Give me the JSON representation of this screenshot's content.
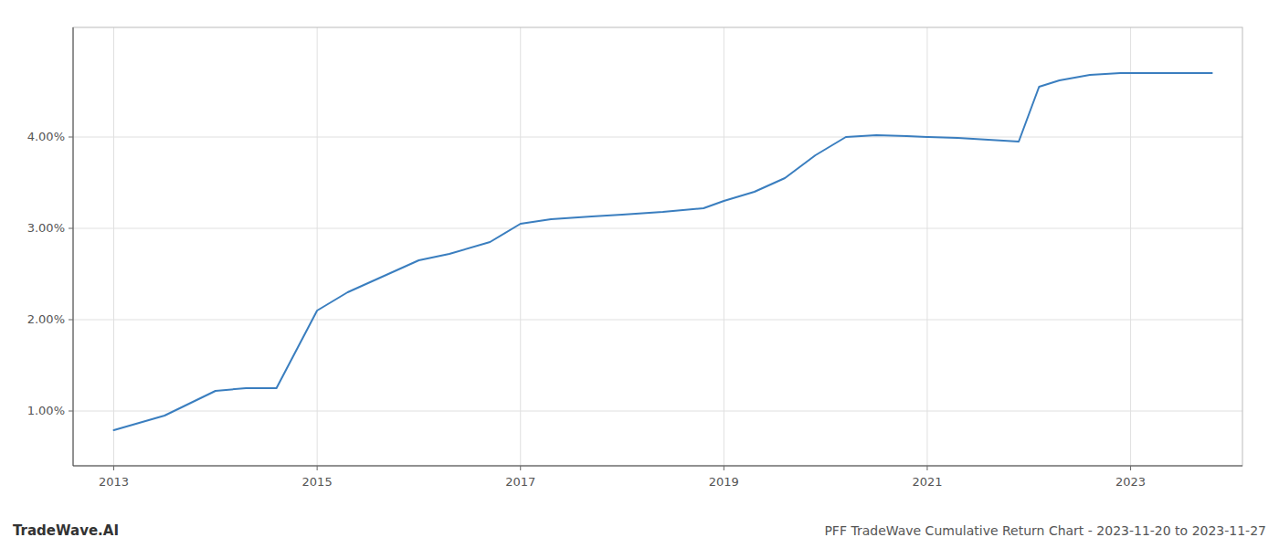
{
  "chart_data": {
    "type": "line",
    "title": "PFF TradeWave Cumulative Return Chart - 2023-11-20 to 2023-11-27",
    "annotations": [
      "TradeWave.AI"
    ],
    "x": [
      2013.0,
      2013.5,
      2014.0,
      2014.3,
      2014.6,
      2015.0,
      2015.3,
      2015.7,
      2016.0,
      2016.3,
      2016.7,
      2017.0,
      2017.3,
      2017.7,
      2018.0,
      2018.4,
      2018.8,
      2019.0,
      2019.3,
      2019.6,
      2019.9,
      2020.2,
      2020.5,
      2020.8,
      2021.0,
      2021.3,
      2021.6,
      2021.9,
      2022.1,
      2022.3,
      2022.6,
      2022.9,
      2023.2,
      2023.8
    ],
    "values": [
      0.0079,
      0.0095,
      0.0122,
      0.0125,
      0.0125,
      0.021,
      0.023,
      0.025,
      0.0265,
      0.0272,
      0.0285,
      0.0305,
      0.031,
      0.0313,
      0.0315,
      0.0318,
      0.0322,
      0.033,
      0.034,
      0.0355,
      0.038,
      0.04,
      0.0402,
      0.0401,
      0.04,
      0.0399,
      0.0397,
      0.0395,
      0.0455,
      0.0462,
      0.0468,
      0.047,
      0.047,
      0.047
    ],
    "color": "#3a7ebf",
    "xlim": [
      2012.6,
      2024.1
    ],
    "xticks": [
      2013,
      2015,
      2017,
      2019,
      2021,
      2023
    ],
    "ylim": [
      0.004,
      0.052
    ],
    "yticks": [
      {
        "value": 0.01,
        "label": "1.00%"
      },
      {
        "value": 0.02,
        "label": "2.00%"
      },
      {
        "value": 0.03,
        "label": "3.00%"
      },
      {
        "value": 0.04,
        "label": "4.00%"
      }
    ],
    "grid": true
  }
}
